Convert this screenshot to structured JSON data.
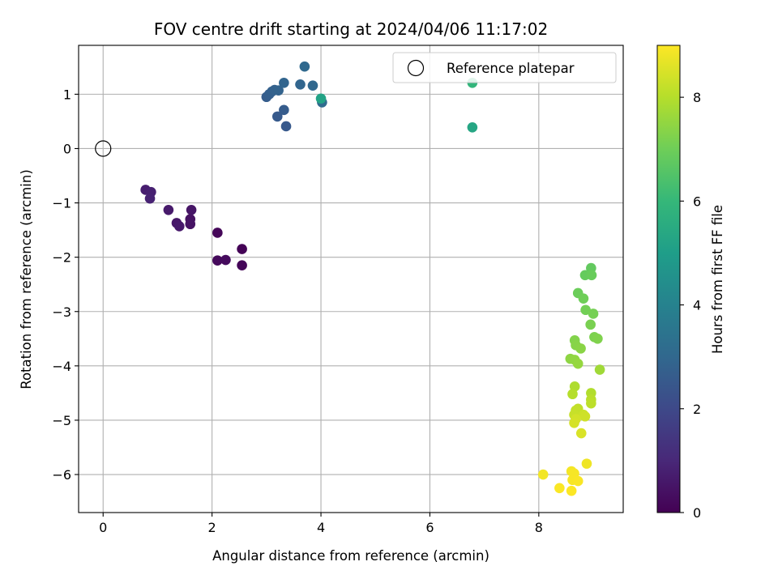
{
  "chart_data": {
    "type": "scatter",
    "title": "FOV centre drift starting at 2024/04/06 11:17:02",
    "xlabel": "Angular distance from reference (arcmin)",
    "ylabel": "Rotation from reference (arcmin)",
    "xlim": [
      -0.45,
      9.55
    ],
    "ylim": [
      -6.7,
      1.9
    ],
    "xticks": [
      0,
      2,
      4,
      6,
      8
    ],
    "yticks": [
      -6,
      -5,
      -4,
      -3,
      -2,
      -1,
      0,
      1
    ],
    "xtick_labels": [
      "0",
      "2",
      "4",
      "6",
      "8"
    ],
    "ytick_labels": [
      "−6",
      "−5",
      "−4",
      "−3",
      "−2",
      "−1",
      "0",
      "1"
    ],
    "grid": true,
    "legend": {
      "position": "top-right",
      "label": "Reference platepar"
    },
    "reference_point": {
      "x": 0,
      "y": 0
    },
    "colorbar": {
      "label": "Hours from first FF file",
      "range": [
        0,
        9
      ],
      "ticks": [
        0,
        2,
        4,
        6,
        8
      ],
      "tick_labels": [
        "0",
        "2",
        "4",
        "6",
        "8"
      ],
      "colormap": [
        "#440154",
        "#482878",
        "#3e4989",
        "#31688e",
        "#26828e",
        "#1f9e89",
        "#35b779",
        "#6ece58",
        "#b5de2b",
        "#fde725"
      ]
    },
    "points": [
      {
        "x": 2.55,
        "y": -1.85,
        "h": 0.05
      },
      {
        "x": 2.55,
        "y": -2.15,
        "h": 0.1
      },
      {
        "x": 2.1,
        "y": -1.55,
        "h": 0.15
      },
      {
        "x": 2.1,
        "y": -2.06,
        "h": 0.2
      },
      {
        "x": 2.25,
        "y": -2.05,
        "h": 0.25
      },
      {
        "x": 1.6,
        "y": -1.3,
        "h": 0.4
      },
      {
        "x": 1.6,
        "y": -1.39,
        "h": 0.45
      },
      {
        "x": 1.62,
        "y": -1.13,
        "h": 0.5
      },
      {
        "x": 1.35,
        "y": -1.37,
        "h": 0.55
      },
      {
        "x": 1.4,
        "y": -1.43,
        "h": 0.6
      },
      {
        "x": 1.2,
        "y": -1.13,
        "h": 0.65
      },
      {
        "x": 0.78,
        "y": -0.76,
        "h": 0.75
      },
      {
        "x": 0.88,
        "y": -0.8,
        "h": 0.8
      },
      {
        "x": 0.86,
        "y": -0.92,
        "h": 0.85
      },
      {
        "x": 3.36,
        "y": 0.41,
        "h": 2.5
      },
      {
        "x": 3.2,
        "y": 0.59,
        "h": 2.55
      },
      {
        "x": 3.32,
        "y": 0.71,
        "h": 2.6
      },
      {
        "x": 3.0,
        "y": 0.95,
        "h": 2.65
      },
      {
        "x": 3.05,
        "y": 1.0,
        "h": 2.7
      },
      {
        "x": 3.1,
        "y": 1.05,
        "h": 2.75
      },
      {
        "x": 3.15,
        "y": 1.08,
        "h": 2.8
      },
      {
        "x": 3.22,
        "y": 1.07,
        "h": 2.85
      },
      {
        "x": 3.32,
        "y": 1.21,
        "h": 2.9
      },
      {
        "x": 3.62,
        "y": 1.18,
        "h": 2.95
      },
      {
        "x": 3.85,
        "y": 1.16,
        "h": 3.0
      },
      {
        "x": 3.7,
        "y": 1.51,
        "h": 3.05
      },
      {
        "x": 4.02,
        "y": 0.85,
        "h": 3.1
      },
      {
        "x": 4.0,
        "y": 0.92,
        "h": 5.2
      },
      {
        "x": 6.78,
        "y": 0.39,
        "h": 5.3
      },
      {
        "x": 6.78,
        "y": 1.21,
        "h": 5.9
      },
      {
        "x": 8.96,
        "y": -2.2,
        "h": 6.8
      },
      {
        "x": 8.85,
        "y": -2.33,
        "h": 6.85
      },
      {
        "x": 8.97,
        "y": -2.33,
        "h": 6.9
      },
      {
        "x": 8.72,
        "y": -2.66,
        "h": 6.95
      },
      {
        "x": 8.82,
        "y": -2.76,
        "h": 7.0
      },
      {
        "x": 8.86,
        "y": -2.97,
        "h": 7.05
      },
      {
        "x": 9.0,
        "y": -3.04,
        "h": 7.1
      },
      {
        "x": 8.95,
        "y": -3.24,
        "h": 7.15
      },
      {
        "x": 9.02,
        "y": -3.47,
        "h": 7.2
      },
      {
        "x": 9.08,
        "y": -3.5,
        "h": 7.25
      },
      {
        "x": 8.66,
        "y": -3.53,
        "h": 7.3
      },
      {
        "x": 8.68,
        "y": -3.62,
        "h": 7.35
      },
      {
        "x": 8.77,
        "y": -3.68,
        "h": 7.4
      },
      {
        "x": 8.58,
        "y": -3.87,
        "h": 7.45
      },
      {
        "x": 8.66,
        "y": -3.89,
        "h": 7.5
      },
      {
        "x": 8.72,
        "y": -3.96,
        "h": 7.55
      },
      {
        "x": 9.12,
        "y": -4.07,
        "h": 7.7
      },
      {
        "x": 8.66,
        "y": -4.38,
        "h": 7.9
      },
      {
        "x": 8.96,
        "y": -4.5,
        "h": 7.95
      },
      {
        "x": 8.62,
        "y": -4.52,
        "h": 8.0
      },
      {
        "x": 8.96,
        "y": -4.62,
        "h": 8.05
      },
      {
        "x": 8.96,
        "y": -4.69,
        "h": 8.1
      },
      {
        "x": 8.72,
        "y": -4.79,
        "h": 8.15
      },
      {
        "x": 8.68,
        "y": -4.82,
        "h": 8.2
      },
      {
        "x": 8.65,
        "y": -4.9,
        "h": 8.25
      },
      {
        "x": 8.82,
        "y": -4.9,
        "h": 8.3
      },
      {
        "x": 8.85,
        "y": -4.93,
        "h": 8.35
      },
      {
        "x": 8.68,
        "y": -4.98,
        "h": 8.4
      },
      {
        "x": 8.65,
        "y": -5.05,
        "h": 8.45
      },
      {
        "x": 8.78,
        "y": -5.24,
        "h": 8.5
      },
      {
        "x": 8.88,
        "y": -5.8,
        "h": 8.8
      },
      {
        "x": 8.08,
        "y": -6.0,
        "h": 8.85
      },
      {
        "x": 8.6,
        "y": -5.94,
        "h": 8.88
      },
      {
        "x": 8.65,
        "y": -5.98,
        "h": 8.9
      },
      {
        "x": 8.62,
        "y": -6.1,
        "h": 8.92
      },
      {
        "x": 8.72,
        "y": -6.12,
        "h": 8.94
      },
      {
        "x": 8.38,
        "y": -6.25,
        "h": 8.96
      },
      {
        "x": 8.6,
        "y": -6.3,
        "h": 8.98
      }
    ]
  }
}
